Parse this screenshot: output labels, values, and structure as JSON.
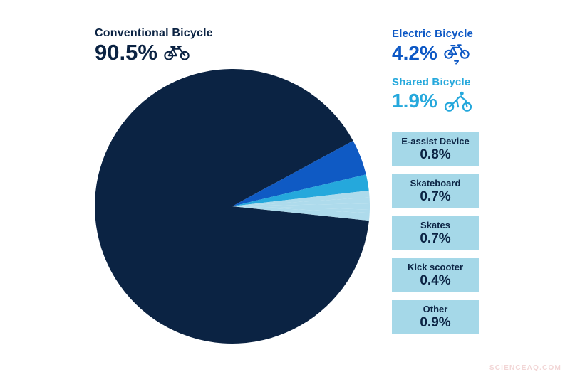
{
  "headline": {
    "conventional": {
      "label": "Conventional Bicycle",
      "value": "90.5%"
    },
    "electric": {
      "label": "Electric Bicycle",
      "value": "4.2%"
    },
    "shared": {
      "label": "Shared Bicycle",
      "value": "1.9%"
    }
  },
  "boxes": [
    {
      "label": "E-assist Device",
      "value": "0.8%"
    },
    {
      "label": "Skateboard",
      "value": "0.7%"
    },
    {
      "label": "Skates",
      "value": "0.7%"
    },
    {
      "label": "Kick scooter",
      "value": "0.4%"
    },
    {
      "label": "Other",
      "value": "0.9%"
    }
  ],
  "watermark": "SCIENCEAQ.COM",
  "colors": {
    "navy": "#0b2343",
    "blue": "#0d58c5",
    "cyan": "#25a8dc",
    "pale": "#aedbec",
    "box": "#a5d8e8",
    "wm": "#f2d6d6"
  },
  "icons": {
    "conventional": "bicycle-icon",
    "electric": "electric-bicycle-icon",
    "shared": "shared-bicycle-rider-icon"
  },
  "chart_data": {
    "type": "pie",
    "title": "",
    "legend_position": "none",
    "start_angle_deg": 6,
    "direction": "clockwise",
    "slices": [
      {
        "label": "Conventional Bicycle",
        "value": 90.5,
        "color": "#0b2343"
      },
      {
        "label": "Electric Bicycle",
        "value": 4.2,
        "color": "#0f5ac4"
      },
      {
        "label": "Shared Bicycle",
        "value": 1.9,
        "color": "#25a8dc"
      },
      {
        "label": "E-assist Device",
        "value": 0.8,
        "color": "#aedbec"
      },
      {
        "label": "Skateboard",
        "value": 0.7,
        "color": "#aedbec"
      },
      {
        "label": "Skates",
        "value": 0.7,
        "color": "#aedbec"
      },
      {
        "label": "Kick scooter",
        "value": 0.4,
        "color": "#aedbec"
      },
      {
        "label": "Other",
        "value": 0.9,
        "color": "#aedbec"
      }
    ]
  }
}
